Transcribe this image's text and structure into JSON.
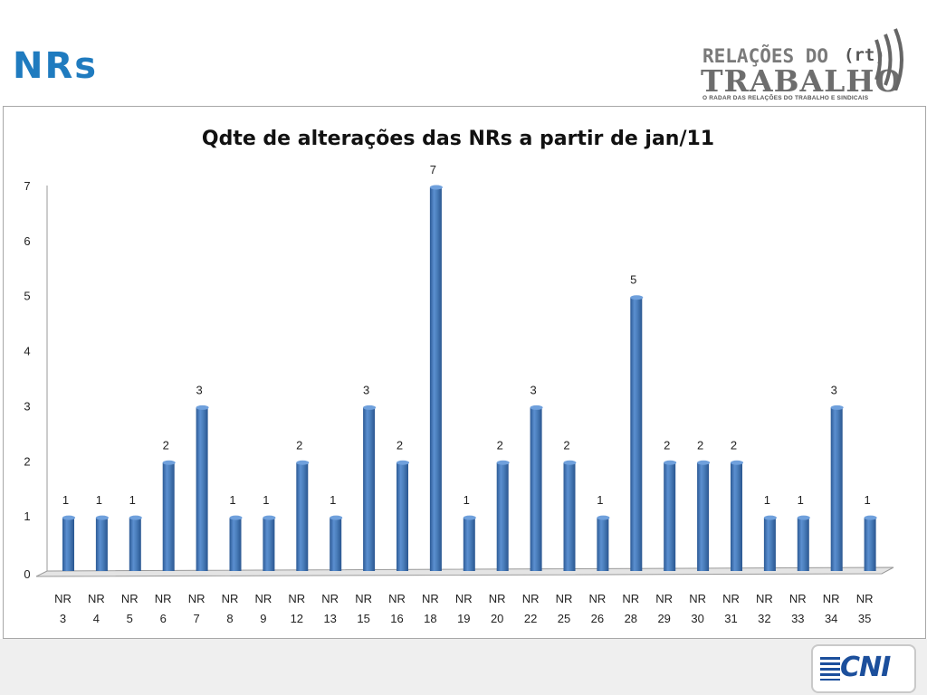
{
  "slide": {
    "title": "NRs"
  },
  "logo_rt": {
    "line1": "RELAÇÕES DO",
    "line2": "TRABALHO",
    "badge": "(rt)",
    "tagline": "O RADAR DAS RELAÇÕES DO TRABALHO E SINDICAIS"
  },
  "logo_cni": {
    "text": "CNI"
  },
  "chart_data": {
    "type": "bar",
    "title": "Qdte de alterações das NRs a partir de jan/11",
    "xlabel": "",
    "ylabel": "",
    "ylim": [
      0,
      7
    ],
    "yticks": [
      0,
      1,
      2,
      3,
      4,
      5,
      6,
      7
    ],
    "categories": [
      [
        "NR",
        "3"
      ],
      [
        "NR",
        "4"
      ],
      [
        "NR",
        "5"
      ],
      [
        "NR",
        "6"
      ],
      [
        "NR",
        "7"
      ],
      [
        "NR",
        "8"
      ],
      [
        "NR",
        "9"
      ],
      [
        "NR",
        "12"
      ],
      [
        "NR",
        "13"
      ],
      [
        "NR",
        "15"
      ],
      [
        "NR",
        "16"
      ],
      [
        "NR",
        "18"
      ],
      [
        "NR",
        "19"
      ],
      [
        "NR",
        "20"
      ],
      [
        "NR",
        "22"
      ],
      [
        "NR",
        "25"
      ],
      [
        "NR",
        "26"
      ],
      [
        "NR",
        "28"
      ],
      [
        "NR",
        "29"
      ],
      [
        "NR",
        "30"
      ],
      [
        "NR",
        "31"
      ],
      [
        "NR",
        "32"
      ],
      [
        "NR",
        "33"
      ],
      [
        "NR",
        "34"
      ],
      [
        "NR",
        "35"
      ]
    ],
    "values": [
      1,
      1,
      1,
      2,
      3,
      1,
      1,
      2,
      1,
      3,
      2,
      7,
      1,
      2,
      3,
      2,
      1,
      5,
      2,
      2,
      2,
      1,
      1,
      3,
      1
    ],
    "data_labels": true,
    "legend": "none",
    "grid": false,
    "bar_color": "#4a7ebb"
  }
}
